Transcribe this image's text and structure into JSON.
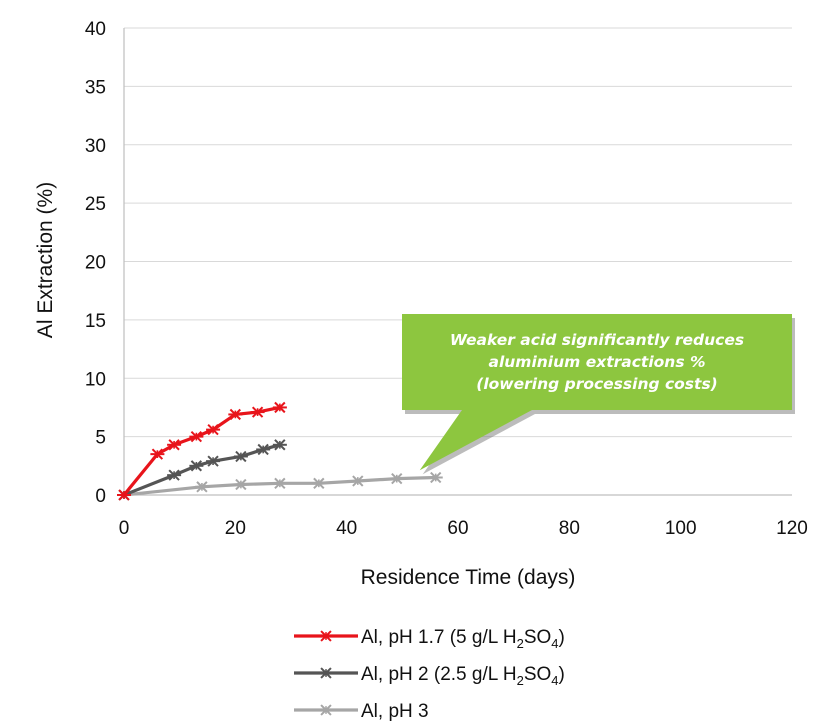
{
  "chart_data": {
    "type": "line",
    "title": "",
    "xlabel": "Residence Time (days)",
    "ylabel": "Al Extraction (%)",
    "xlim": [
      0,
      120
    ],
    "ylim": [
      0,
      40
    ],
    "xticks": [
      0,
      20,
      40,
      60,
      80,
      100,
      120
    ],
    "yticks": [
      0,
      5,
      10,
      15,
      20,
      25,
      30,
      35,
      40
    ],
    "grid": "horizontal",
    "legend_position": "bottom",
    "series": [
      {
        "name": "Al, pH 1.7 (5 g/L H2SO4)",
        "legend_main": "Al, pH 1.7 (5 g/L H",
        "legend_sub": "2",
        "legend_mid": "SO",
        "legend_sub2": "4",
        "legend_end": ")",
        "color": "#e8141b",
        "marker": "asterisk",
        "x": [
          0,
          6,
          9,
          13,
          16,
          20,
          24,
          28
        ],
        "y": [
          0,
          3.5,
          4.3,
          5.0,
          5.6,
          6.9,
          7.1,
          7.5
        ]
      },
      {
        "name": "Al, pH 2 (2.5 g/L H2SO4)",
        "legend_main": "Al, pH 2 (2.5 g/L H",
        "legend_sub": "2",
        "legend_mid": "SO",
        "legend_sub2": "4",
        "legend_end": ")",
        "color": "#555555",
        "marker": "asterisk",
        "x": [
          0,
          9,
          13,
          16,
          21,
          25,
          28
        ],
        "y": [
          0,
          1.7,
          2.5,
          2.9,
          3.3,
          3.9,
          4.3
        ]
      },
      {
        "name": "Al, pH 3",
        "legend_main": "Al, pH 3",
        "legend_sub": "",
        "legend_mid": "",
        "legend_sub2": "",
        "legend_end": "",
        "color": "#a6a6a6",
        "marker": "asterisk",
        "x": [
          0,
          14,
          21,
          28,
          35,
          42,
          49,
          56
        ],
        "y": [
          0,
          0.7,
          0.9,
          1.0,
          1.0,
          1.2,
          1.4,
          1.5
        ]
      }
    ],
    "annotation": {
      "lines": [
        "Weaker acid significantly reduces",
        "aluminium extractions %",
        "(lowering processing costs)"
      ],
      "pointer_x": 56,
      "pointer_y": 2.8,
      "background": "#8dc63f",
      "text_color": "#ffffff"
    }
  }
}
